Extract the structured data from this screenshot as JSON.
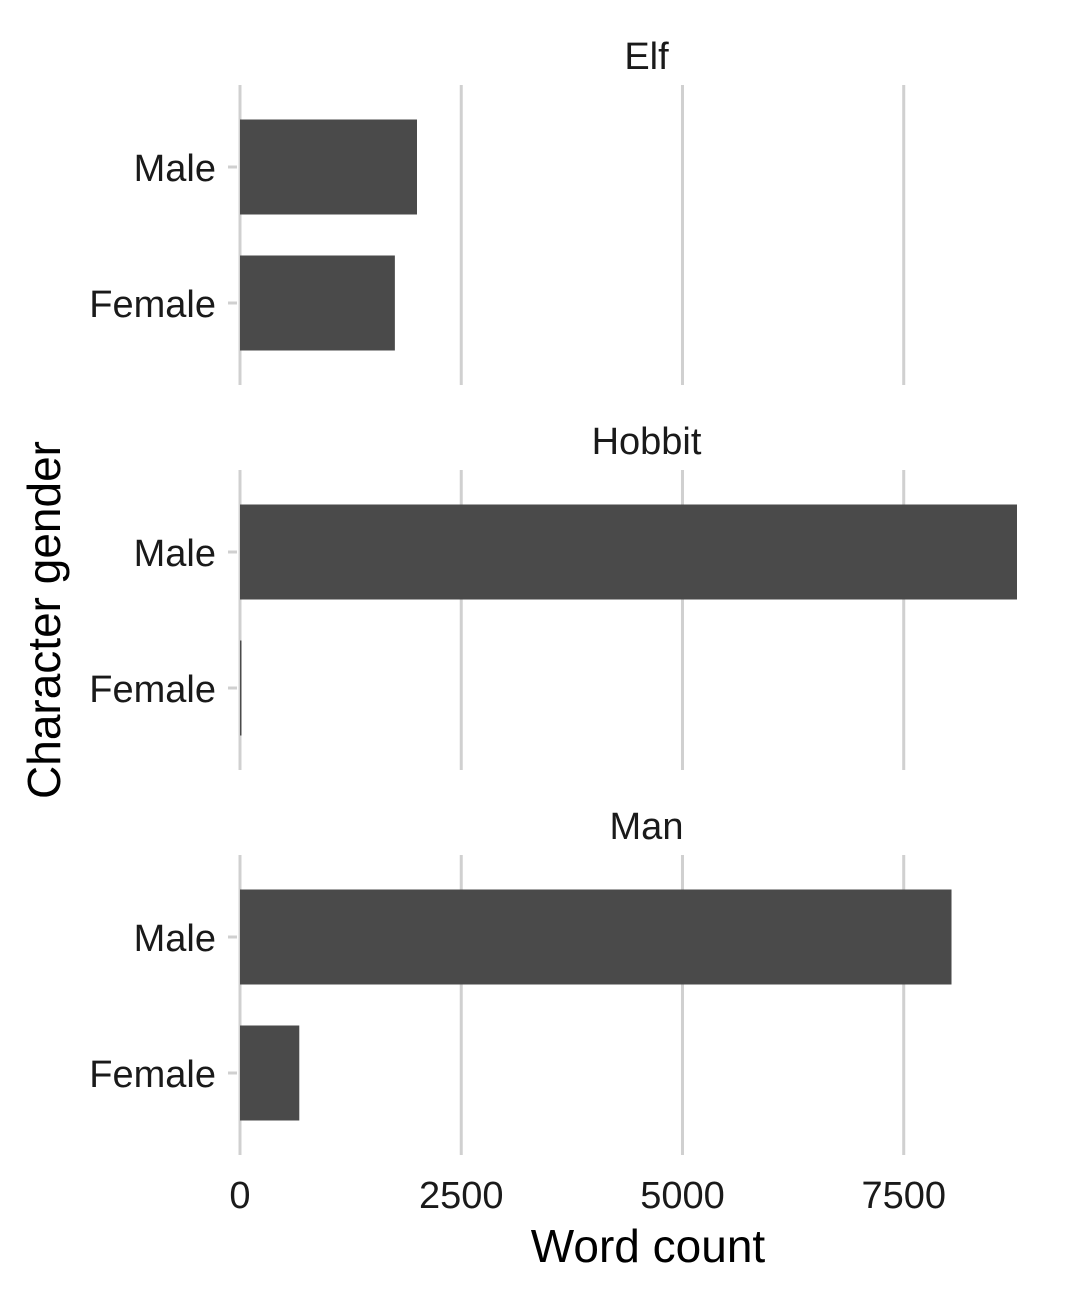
{
  "chart_data": {
    "type": "bar",
    "orientation": "horizontal",
    "facet_by": "race",
    "facets": [
      {
        "title": "Elf",
        "categories": [
          "Male",
          "Female"
        ],
        "values": [
          2000,
          1750
        ]
      },
      {
        "title": "Hobbit",
        "categories": [
          "Male",
          "Female"
        ],
        "values": [
          8780,
          10
        ]
      },
      {
        "title": "Man",
        "categories": [
          "Male",
          "Female"
        ],
        "values": [
          8040,
          670
        ]
      }
    ],
    "xlabel": "Word count",
    "ylabel": "Character gender",
    "x_ticks": [
      0,
      2500,
      5000,
      7500
    ],
    "x_tick_labels": [
      "0",
      "2500",
      "5000",
      "7500"
    ],
    "xlim": [
      0,
      8780
    ],
    "grid": "vertical major",
    "bar_color": "#4a4a4a",
    "grid_color": "#d0d0d0"
  }
}
